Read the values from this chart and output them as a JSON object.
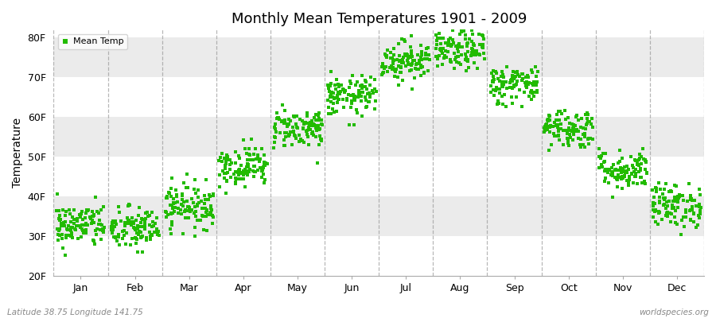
{
  "title": "Monthly Mean Temperatures 1901 - 2009",
  "ylabel": "Temperature",
  "xlabel_months": [
    "Jan",
    "Feb",
    "Mar",
    "Apr",
    "May",
    "Jun",
    "Jul",
    "Aug",
    "Sep",
    "Oct",
    "Nov",
    "Dec"
  ],
  "ytick_labels": [
    "20F",
    "30F",
    "40F",
    "50F",
    "60F",
    "70F",
    "80F"
  ],
  "ytick_values": [
    20,
    30,
    40,
    50,
    60,
    70,
    80
  ],
  "ylim": [
    20,
    82
  ],
  "legend_label": "Mean Temp",
  "marker_color": "#22bb00",
  "fig_bg_color": "#ffffff",
  "plot_bg_color": "#ffffff",
  "band_color_light": "#ffffff",
  "band_color_dark": "#ebebeb",
  "vline_color": "#999999",
  "footnote_left": "Latitude 38.75 Longitude 141.75",
  "footnote_right": "worldspecies.org",
  "n_years": 109,
  "monthly_means_f": [
    32.5,
    31.5,
    37.5,
    47.5,
    57.0,
    65.0,
    74.0,
    76.5,
    68.0,
    57.0,
    46.5,
    37.5
  ],
  "monthly_stds_f": [
    2.8,
    2.8,
    2.8,
    2.5,
    2.5,
    2.5,
    2.5,
    2.5,
    2.5,
    2.5,
    2.5,
    2.8
  ]
}
